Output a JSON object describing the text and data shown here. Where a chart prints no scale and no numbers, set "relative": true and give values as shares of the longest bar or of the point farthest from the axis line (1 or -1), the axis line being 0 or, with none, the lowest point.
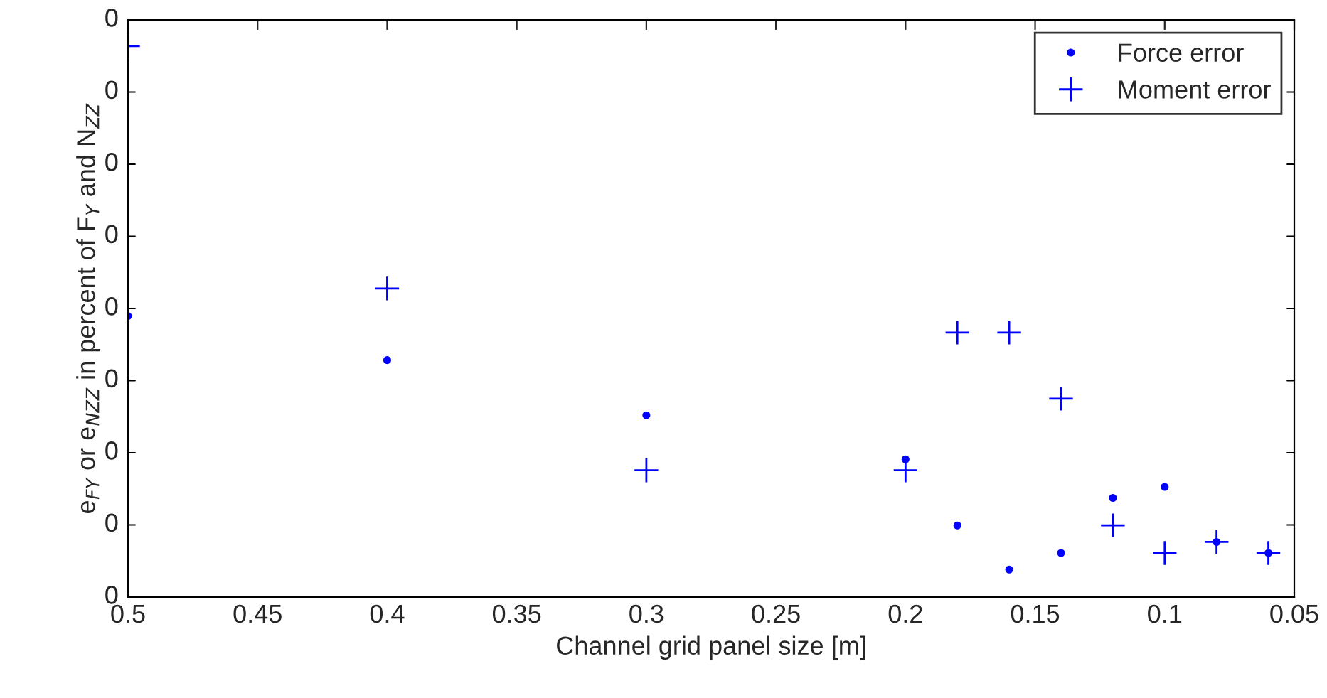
{
  "chart_data": {
    "type": "scatter",
    "relative": true,
    "xlabel": "Channel grid panel size [m]",
    "ylabel": "e$_{FY}$ or e$_{NZZ}$ in percent of F$_{Y}$ and N$_{ZZ}$",
    "annotations": [
      "0",
      "0",
      "0",
      "0",
      "0",
      "0",
      "0",
      "0",
      "0"
    ],
    "x": [
      0.5,
      0.4,
      0.3,
      0.2,
      0.18,
      0.16,
      0.14,
      0.12,
      0.1,
      0.08,
      0.06
    ],
    "xlim": [
      0.5,
      0.05
    ],
    "xticks": [
      {
        "value": 0.5,
        "label": "0.5"
      },
      0.45,
      {
        "value": 0.4,
        "label": "0.4"
      },
      0.35,
      {
        "value": 0.3,
        "label": "0.3"
      },
      0.25,
      {
        "value": 0.2,
        "label": "0.2"
      },
      0.15,
      {
        "value": 0.1,
        "label": "0.1"
      },
      0.05
    ],
    "series": [
      {
        "name": "Force error",
        "color": "#0000ff",
        "marker": "circle",
        "values": [
          0.51,
          0.43,
          0.33,
          0.25,
          0.13,
          0.05,
          0.08,
          0.18,
          0.2,
          0.1,
          0.08
        ]
      },
      {
        "name": "Moment error",
        "color": "#0000ff",
        "marker": "cross",
        "values": [
          1,
          0.56,
          0.23,
          0.23,
          0.48,
          0.48,
          0.36,
          0.13,
          0.08,
          0.1,
          0.08
        ]
      }
    ],
    "legend": "top right",
    "grid": false
  }
}
